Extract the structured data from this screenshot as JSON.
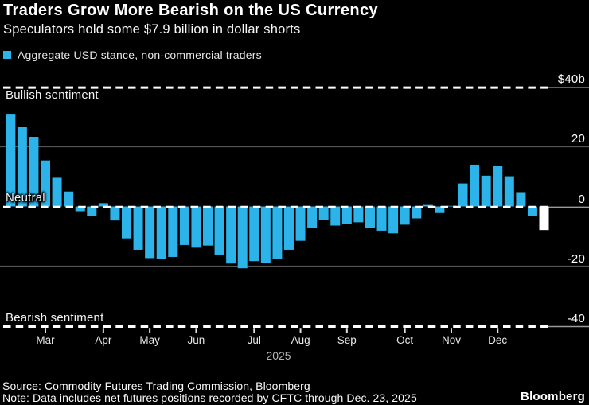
{
  "header": {
    "title": "Traders Grow More Bearish on the US Currency",
    "subtitle": "Speculators hold some $7.9 billion in dollar shorts",
    "legend": {
      "label": "Aggregate USD stance, non-commercial traders"
    }
  },
  "chart_data": {
    "type": "bar",
    "title": "Aggregate USD stance, non-commercial traders",
    "year_label": "2025",
    "ylim": [
      -45,
      45
    ],
    "grid": "on",
    "legend_position": "top-left",
    "y_gridlines": [
      {
        "label": "$40b",
        "value": 40,
        "style": "dashed"
      },
      {
        "label": "20",
        "value": 20,
        "style": "solid"
      },
      {
        "label": "0",
        "value": 0,
        "style": "dashed"
      },
      {
        "label": "-20",
        "value": -20,
        "style": "solid"
      },
      {
        "label": "-40",
        "value": -40,
        "style": "dashed"
      }
    ],
    "zone_labels": {
      "bullish": "Bullish sentiment",
      "neutral": "Neutral",
      "bearish": "Bearish sentiment"
    },
    "x_ticks": [
      {
        "label": "Mar",
        "bar_index": 3
      },
      {
        "label": "Apr",
        "bar_index": 8
      },
      {
        "label": "May",
        "bar_index": 12
      },
      {
        "label": "Jun",
        "bar_index": 16
      },
      {
        "label": "Jul",
        "bar_index": 21
      },
      {
        "label": "Aug",
        "bar_index": 25
      },
      {
        "label": "Sep",
        "bar_index": 29
      },
      {
        "label": "Oct",
        "bar_index": 34
      },
      {
        "label": "Nov",
        "bar_index": 38
      },
      {
        "label": "Dec",
        "bar_index": 42
      }
    ],
    "values": [
      31,
      26.5,
      23.3,
      15.4,
      9.6,
      5.0,
      -1.6,
      -3.3,
      1.1,
      -4.7,
      -10.7,
      -14.5,
      -17.3,
      -17.6,
      -16.9,
      -12.9,
      -13.8,
      -13.1,
      -16.1,
      -19.1,
      -20.7,
      -18.3,
      -18.8,
      -17.6,
      -14.5,
      -11.5,
      -7.3,
      -4.6,
      -6.4,
      -5.9,
      -5.3,
      -7.3,
      -8.1,
      -9.0,
      -6.1,
      -4.0,
      0.5,
      -2.2,
      0.2,
      7.7,
      14.0,
      10.3,
      13.7,
      10.1,
      4.8,
      -3.2,
      -7.9
    ],
    "highlight_last_bar": true,
    "colors": {
      "background": "#000000",
      "bar": "#2CB4EA",
      "highlight_bar": "#FFFFFF",
      "solid_gridline": "#545454",
      "right_gridline": "#9A9A9A",
      "dashed_line": "#FFFFFF",
      "tick": "#DDDDDD"
    }
  },
  "footer": {
    "source": "Source: Commodity Futures Trading Commission, Bloomberg",
    "note": "Note: Data includes net futures positions recorded by CFTC through Dec. 23, 2025",
    "brand": "Bloomberg"
  }
}
